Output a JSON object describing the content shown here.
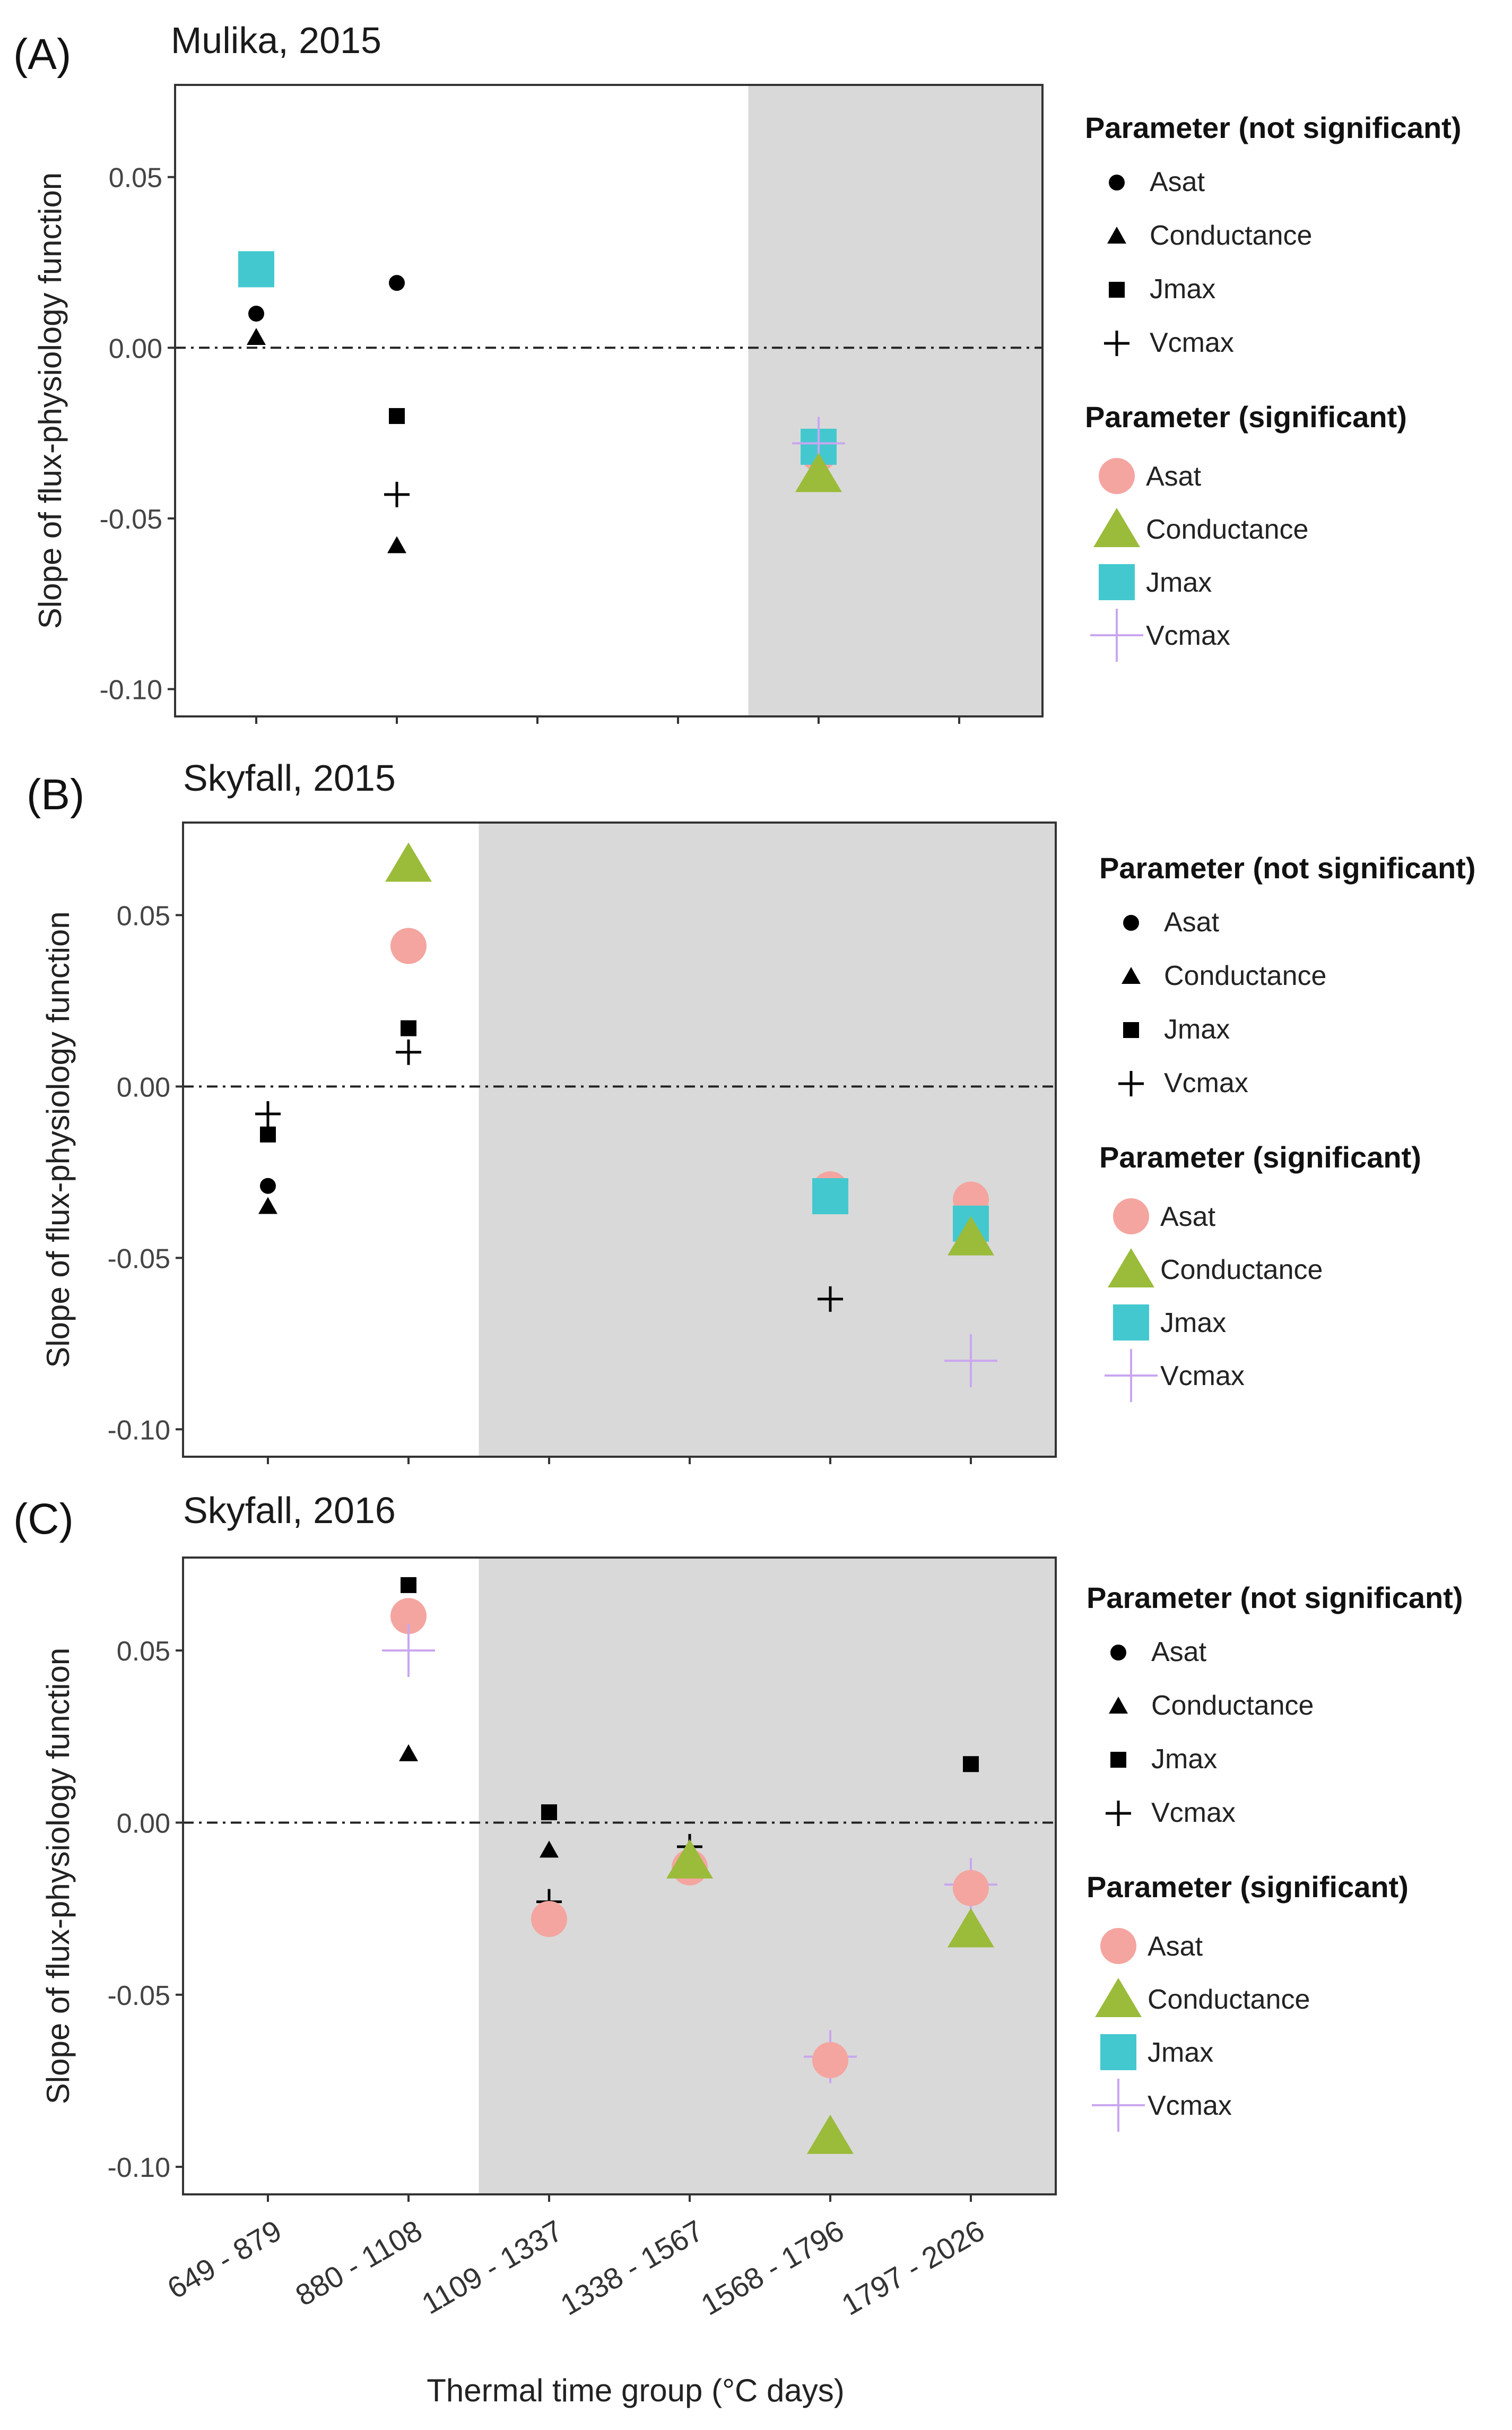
{
  "figure": {
    "x_axis_label": "Thermal time group (°C days)",
    "y_axis_label": "Slope of flux-physiology function",
    "x_categories": [
      "649 - 879",
      "880 - 1108",
      "1109 - 1337",
      "1338 - 1567",
      "1568 - 1796",
      "1797 - 2026"
    ],
    "y_ticks": [
      0.05,
      0.0,
      -0.05,
      -0.1
    ],
    "y_tick_labels": [
      "0.05",
      "0.00",
      "-0.05",
      "-0.10"
    ],
    "ylim": [
      -0.108,
      0.077
    ],
    "legend": {
      "title_not_significant": "Parameter (not significant)",
      "title_significant": "Parameter (significant)",
      "entries": [
        {
          "name": "Asat",
          "symbol": "circle",
          "color_not_significant": "#000000",
          "color_significant": "#f4a5a0"
        },
        {
          "name": "Conductance",
          "symbol": "triangle",
          "color_not_significant": "#000000",
          "color_significant": "#9bbb3a"
        },
        {
          "name": "Jmax",
          "symbol": "square",
          "color_not_significant": "#000000",
          "color_significant": "#44c8cf"
        },
        {
          "name": "Vcmax",
          "symbol": "plus",
          "color_not_significant": "#000000",
          "color_significant": "#c9a6ef"
        }
      ]
    },
    "colors": {
      "shading": "#d9d9d9",
      "zero_line": "#222222",
      "frame": "#333333"
    }
  },
  "chart_data": [
    {
      "type": "scatter",
      "panel_label": "(A)",
      "title": "Mulika, 2015",
      "shaded_from_category": 4,
      "points": [
        {
          "param": "Jmax",
          "category": 0,
          "value": 0.023,
          "significant": true
        },
        {
          "param": "Asat",
          "category": 0,
          "value": 0.01,
          "significant": false
        },
        {
          "param": "Conductance",
          "category": 0,
          "value": 0.003,
          "significant": false
        },
        {
          "param": "Asat",
          "category": 1,
          "value": 0.019,
          "significant": false
        },
        {
          "param": "Jmax",
          "category": 1,
          "value": -0.02,
          "significant": false
        },
        {
          "param": "Vcmax",
          "category": 1,
          "value": -0.043,
          "significant": false
        },
        {
          "param": "Conductance",
          "category": 1,
          "value": -0.058,
          "significant": false
        },
        {
          "param": "Asat",
          "category": 4,
          "value": -0.031,
          "significant": true
        },
        {
          "param": "Jmax",
          "category": 4,
          "value": -0.029,
          "significant": true
        },
        {
          "param": "Vcmax",
          "category": 4,
          "value": -0.028,
          "significant": true
        },
        {
          "param": "Conductance",
          "category": 4,
          "value": -0.037,
          "significant": true
        }
      ]
    },
    {
      "type": "scatter",
      "panel_label": "(B)",
      "title": "Skyfall, 2015",
      "shaded_from_category": 2,
      "points": [
        {
          "param": "Vcmax",
          "category": 0,
          "value": -0.008,
          "significant": false
        },
        {
          "param": "Jmax",
          "category": 0,
          "value": -0.014,
          "significant": false
        },
        {
          "param": "Asat",
          "category": 0,
          "value": -0.029,
          "significant": false
        },
        {
          "param": "Conductance",
          "category": 0,
          "value": -0.035,
          "significant": false
        },
        {
          "param": "Conductance",
          "category": 1,
          "value": 0.065,
          "significant": true
        },
        {
          "param": "Asat",
          "category": 1,
          "value": 0.041,
          "significant": true
        },
        {
          "param": "Jmax",
          "category": 1,
          "value": 0.017,
          "significant": false
        },
        {
          "param": "Vcmax",
          "category": 1,
          "value": 0.01,
          "significant": false
        },
        {
          "param": "Asat",
          "category": 4,
          "value": -0.03,
          "significant": true
        },
        {
          "param": "Conductance",
          "category": 4,
          "value": -0.031,
          "significant": false
        },
        {
          "param": "Jmax",
          "category": 4,
          "value": -0.032,
          "significant": true
        },
        {
          "param": "Vcmax",
          "category": 4,
          "value": -0.062,
          "significant": false
        },
        {
          "param": "Asat",
          "category": 5,
          "value": -0.033,
          "significant": true
        },
        {
          "param": "Jmax",
          "category": 5,
          "value": -0.04,
          "significant": true
        },
        {
          "param": "Conductance",
          "category": 5,
          "value": -0.044,
          "significant": true
        },
        {
          "param": "Vcmax",
          "category": 5,
          "value": -0.08,
          "significant": true
        }
      ]
    },
    {
      "type": "scatter",
      "panel_label": "(C)",
      "title": "Skyfall, 2016",
      "shaded_from_category": 2,
      "points": [
        {
          "param": "Jmax",
          "category": 1,
          "value": 0.069,
          "significant": false
        },
        {
          "param": "Asat",
          "category": 1,
          "value": 0.06,
          "significant": true
        },
        {
          "param": "Vcmax",
          "category": 1,
          "value": 0.05,
          "significant": true
        },
        {
          "param": "Conductance",
          "category": 1,
          "value": 0.02,
          "significant": false
        },
        {
          "param": "Jmax",
          "category": 2,
          "value": 0.003,
          "significant": false
        },
        {
          "param": "Conductance",
          "category": 2,
          "value": -0.008,
          "significant": false
        },
        {
          "param": "Vcmax",
          "category": 2,
          "value": -0.023,
          "significant": false
        },
        {
          "param": "Asat",
          "category": 2,
          "value": -0.028,
          "significant": true
        },
        {
          "param": "Vcmax",
          "category": 3,
          "value": -0.007,
          "significant": false
        },
        {
          "param": "Asat",
          "category": 3,
          "value": -0.013,
          "significant": true
        },
        {
          "param": "Conductance",
          "category": 3,
          "value": -0.011,
          "significant": true
        },
        {
          "param": "Vcmax",
          "category": 4,
          "value": -0.068,
          "significant": true
        },
        {
          "param": "Asat",
          "category": 4,
          "value": -0.069,
          "significant": true
        },
        {
          "param": "Conductance",
          "category": 4,
          "value": -0.091,
          "significant": true
        },
        {
          "param": "Jmax",
          "category": 5,
          "value": 0.017,
          "significant": false
        },
        {
          "param": "Vcmax",
          "category": 5,
          "value": -0.018,
          "significant": true
        },
        {
          "param": "Asat",
          "category": 5,
          "value": -0.019,
          "significant": true
        },
        {
          "param": "Conductance",
          "category": 5,
          "value": -0.031,
          "significant": true
        }
      ]
    }
  ]
}
